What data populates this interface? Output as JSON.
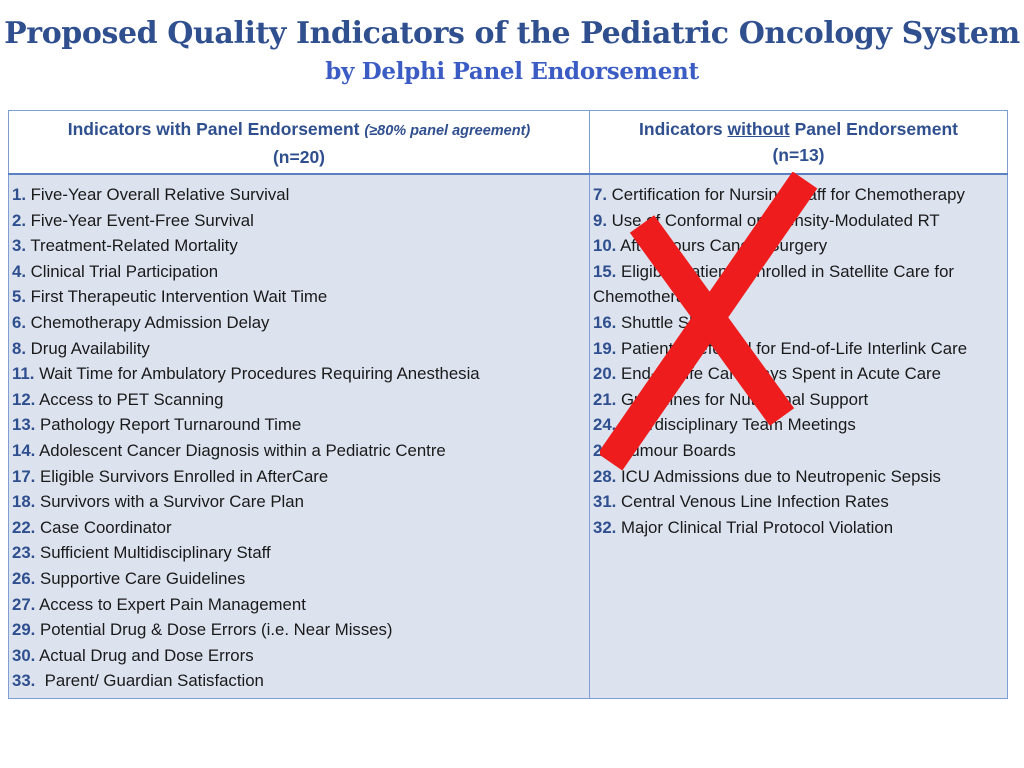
{
  "title": "Proposed Quality Indicators of the Pediatric Oncology System",
  "subtitle": "by Delphi Panel Endorsement",
  "table": {
    "left_header": {
      "label": "Indicators with Panel Endorsement ",
      "agreement": "(≥80% panel agreement)",
      "count": "(n=20)"
    },
    "right_header": {
      "label_prefix": "Indicators ",
      "label_emphasis": "without",
      "label_suffix": " Panel Endorsement",
      "count": "(n=13)"
    },
    "endorsed": [
      {
        "num": "1.",
        "text": " Five-Year Overall Relative Survival"
      },
      {
        "num": "2.",
        "text": " Five-Year Event-Free Survival"
      },
      {
        "num": "3.",
        "text": " Treatment-Related Mortality"
      },
      {
        "num": "4.",
        "text": " Clinical Trial Participation"
      },
      {
        "num": "5.",
        "text": " First Therapeutic Intervention Wait Time"
      },
      {
        "num": "6.",
        "text": " Chemotherapy Admission Delay"
      },
      {
        "num": "8.",
        "text": " Drug Availability"
      },
      {
        "num": "11.",
        "text": " Wait Time for Ambulatory Procedures Requiring Anesthesia"
      },
      {
        "num": "12.",
        "text": " Access to PET Scanning"
      },
      {
        "num": "13.",
        "text": " Pathology Report Turnaround Time"
      },
      {
        "num": "14.",
        "text": " Adolescent Cancer Diagnosis within a Pediatric Centre"
      },
      {
        "num": "17.",
        "text": " Eligible Survivors Enrolled in AfterCare"
      },
      {
        "num": "18.",
        "text": " Survivors with a Survivor Care Plan"
      },
      {
        "num": "22.",
        "text": " Case Coordinator"
      },
      {
        "num": "23.",
        "text": " Sufficient Multidisciplinary Staff"
      },
      {
        "num": "26.",
        "text": " Supportive Care Guidelines"
      },
      {
        "num": "27.",
        "text": " Access to Expert Pain Management"
      },
      {
        "num": "29.",
        "text": " Potential Drug & Dose Errors (i.e. Near Misses)"
      },
      {
        "num": "30.",
        "text": " Actual Drug and Dose Errors"
      },
      {
        "num": "33.",
        "text": "  Parent/ Guardian Satisfaction"
      }
    ],
    "not_endorsed": [
      {
        "num": "7.",
        "text": " Certification for Nursing Staff for Chemotherapy"
      },
      {
        "num": "9.",
        "text": " Use of Conformal or Intensity-Modulated RT"
      },
      {
        "num": "10.",
        "text": " After Hours Cancer Surgery"
      },
      {
        "num": "15.",
        "text": " Eligible Patients Enrolled in Satellite Care for Chemotherapy"
      },
      {
        "num": "16.",
        "text": " Shuttle Sheets"
      },
      {
        "num": "19.",
        "text": " Patients Referred for End-of-Life Interlink Care"
      },
      {
        "num": "20.",
        "text": " End-of-Life Care Days Spent in Acute Care"
      },
      {
        "num": "21.",
        "text": " Guidelines for Nutritional Support"
      },
      {
        "num": "24.",
        "text": " Interdisciplinary Team Meetings"
      },
      {
        "num": "25.",
        "text": " Tumour Boards"
      },
      {
        "num": "28.",
        "text": " ICU Admissions due to Neutropenic Sepsis"
      },
      {
        "num": "31.",
        "text": " Central Venous Line Infection Rates"
      },
      {
        "num": "32.",
        "text": " Major Clinical Trial Protocol Violation"
      }
    ]
  },
  "colors": {
    "title": "#2f4f8f",
    "subtitle": "#3b5cc4",
    "cell_background": "#dce3ef",
    "cross": "#ee1c1c"
  },
  "icons": {
    "rejection_mark": "red-x-icon"
  }
}
